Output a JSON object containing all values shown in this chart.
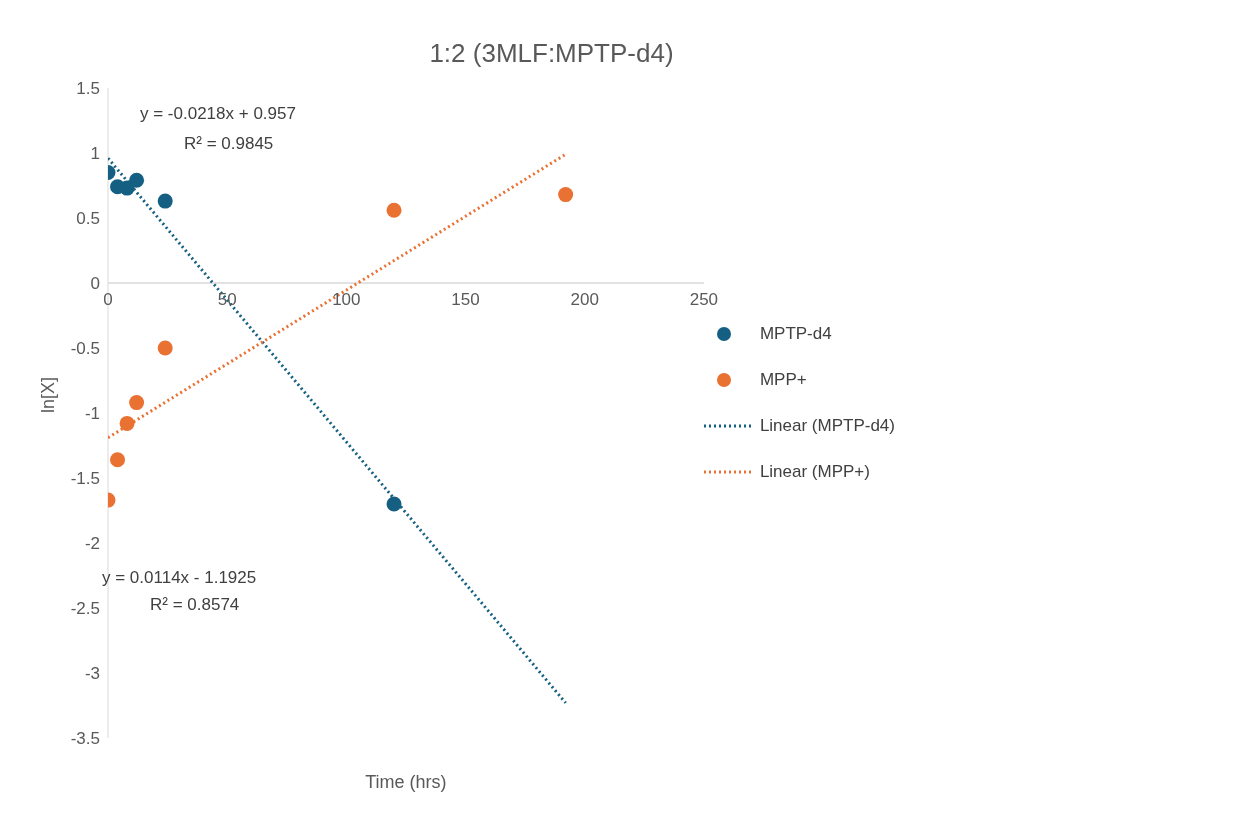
{
  "chart_data": {
    "type": "scatter",
    "title": "1:2 (3MLF:MPTP-d4)",
    "xlabel": "Time (hrs)",
    "ylabel": "ln[X]",
    "xlim": [
      0,
      250
    ],
    "xticks": [
      0,
      50,
      100,
      150,
      200,
      250
    ],
    "ylim": [
      -3.5,
      1.5
    ],
    "yticks": [
      -3.5,
      -3,
      -2.5,
      -2,
      -1.5,
      -1,
      -0.5,
      0,
      0.5,
      1,
      1.5
    ],
    "grid": false,
    "legend": "right",
    "series": [
      {
        "name": "MPTP-d4",
        "color": "#156082",
        "marker": "circle",
        "x": [
          0,
          4,
          8,
          12,
          24,
          120
        ],
        "values": [
          0.85,
          0.74,
          0.73,
          0.79,
          0.63,
          -1.7
        ]
      },
      {
        "name": "MPP+",
        "color": "#e97132",
        "marker": "circle",
        "x": [
          0,
          4,
          8,
          12,
          24,
          120,
          192
        ],
        "values": [
          -1.67,
          -1.36,
          -1.08,
          -0.92,
          -0.5,
          0.56,
          0.68
        ]
      },
      {
        "name": "Linear (MPTP-d4)",
        "type": "line",
        "color": "#156082",
        "marker": "none",
        "line_style": "dotted",
        "x": [
          0,
          192
        ],
        "values": [
          0.96,
          -3.23
        ]
      },
      {
        "name": "Linear (MPP+)",
        "type": "line",
        "color": "#e97132",
        "marker": "none",
        "line_style": "dotted",
        "x": [
          0,
          192
        ],
        "values": [
          -1.19,
          0.99
        ]
      }
    ],
    "annotations": [
      "y = -0.0218x + 0.957",
      "R² = 0.9845",
      "y = 0.0114x - 1.1925",
      "R² = 0.8574"
    ]
  }
}
